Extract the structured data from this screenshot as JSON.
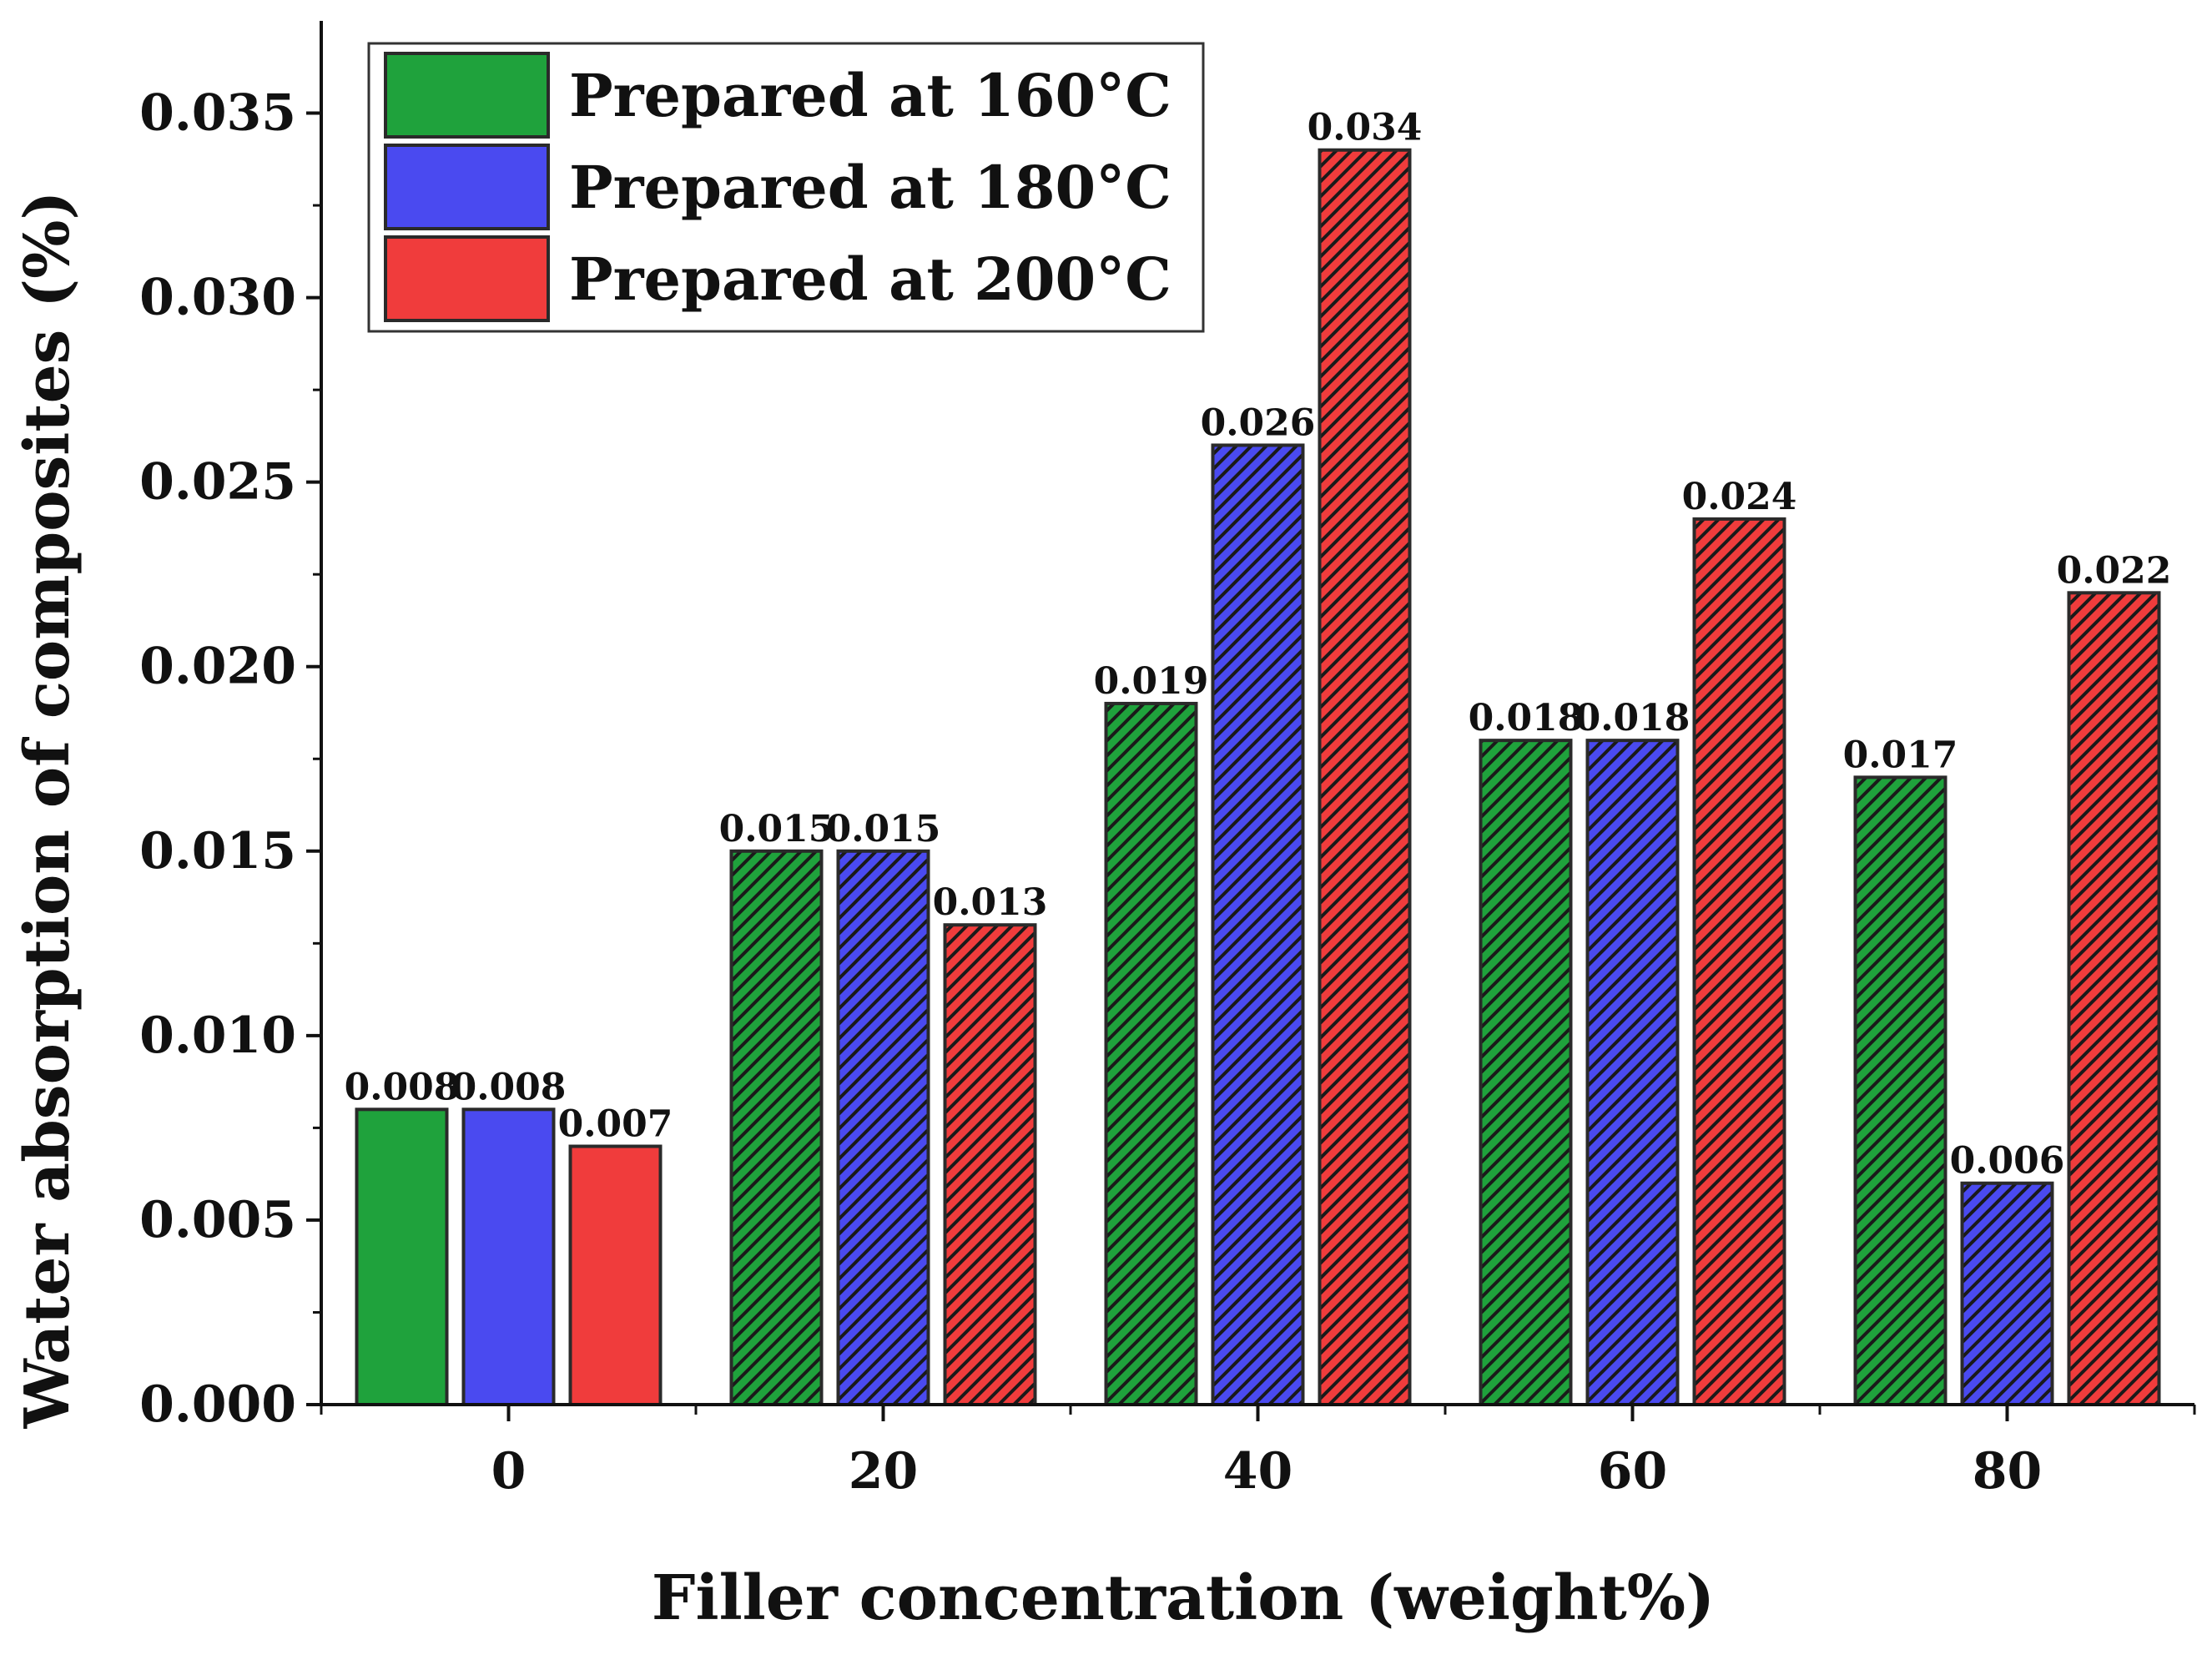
{
  "chart_data": {
    "type": "bar",
    "xlabel": "Filler concentration (weight%)",
    "ylabel": "Water absorption of composites (%)",
    "categories": [
      "0",
      "20",
      "40",
      "60",
      "80"
    ],
    "ylim": [
      0,
      0.0375
    ],
    "yticks": [
      "0.000",
      "0.005",
      "0.010",
      "0.015",
      "0.020",
      "0.025",
      "0.030",
      "0.035"
    ],
    "legend_position": "top-left",
    "series": [
      {
        "name": "Prepared at 160°C",
        "color": "#1fa23c",
        "values": [
          0.008,
          0.015,
          0.019,
          0.018,
          0.017
        ],
        "labels": [
          "0.008",
          "0.015",
          "0.019",
          "0.018",
          "0.017"
        ]
      },
      {
        "name": "Prepared at 180°C",
        "color": "#4a4af0",
        "values": [
          0.008,
          0.015,
          0.026,
          0.018,
          0.006
        ],
        "labels": [
          "0.008",
          "0.015",
          "0.026",
          "0.018",
          "0.006"
        ]
      },
      {
        "name": "Prepared at 200°C",
        "color": "#f03c3c",
        "values": [
          0.007,
          0.013,
          0.034,
          0.024,
          0.022
        ],
        "labels": [
          "0.007",
          "0.013",
          "0.034",
          "0.024",
          "0.022"
        ]
      }
    ],
    "hatched_categories": [
      "20",
      "40",
      "60",
      "80"
    ]
  }
}
